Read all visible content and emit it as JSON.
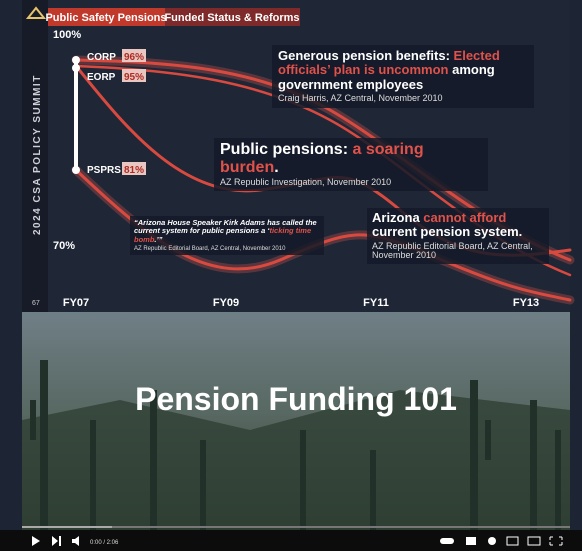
{
  "header": {
    "tabs": [
      "Public Safety Pensions",
      "Funded Status & Reforms"
    ]
  },
  "sidebar": {
    "event": "2024 CSA POLICY SUMMIT",
    "slide_number": "67"
  },
  "chart": {
    "y_axis": [
      "100%",
      "70%"
    ],
    "x_axis": [
      "FY07",
      "FY09",
      "FY11",
      "FY13"
    ],
    "plans": [
      {
        "name": "CORP",
        "funded": "96%"
      },
      {
        "name": "EORP",
        "funded": "95%"
      },
      {
        "name": "PSPRS",
        "funded": "81%"
      }
    ]
  },
  "callouts": [
    {
      "before": "Generous pension benefits: ",
      "accent": "Elected officials’ plan is uncommon",
      "after": " among government employees",
      "source": "Craig Harris, AZ Central, November 2010"
    },
    {
      "before": "Public pensions: ",
      "accent": "a soaring burden",
      "after": ".",
      "source": "AZ Republic Investigation, November 2010"
    },
    {
      "before": "Arizona ",
      "accent": "cannot afford",
      "after": " current pension system.",
      "source": "AZ Republic Editorial Board, AZ Central, November 2010"
    }
  ],
  "quote": {
    "before": "“Arizona House Speaker Kirk Adams has called the current system for public pensions a ‘",
    "accent": "ticking time bomb",
    "after": ".’”",
    "source": "AZ Republic Editorial Board, AZ Central, November 2010"
  },
  "video": {
    "title": "Pension Funding 101",
    "time": "0:00 / 2:06"
  }
}
